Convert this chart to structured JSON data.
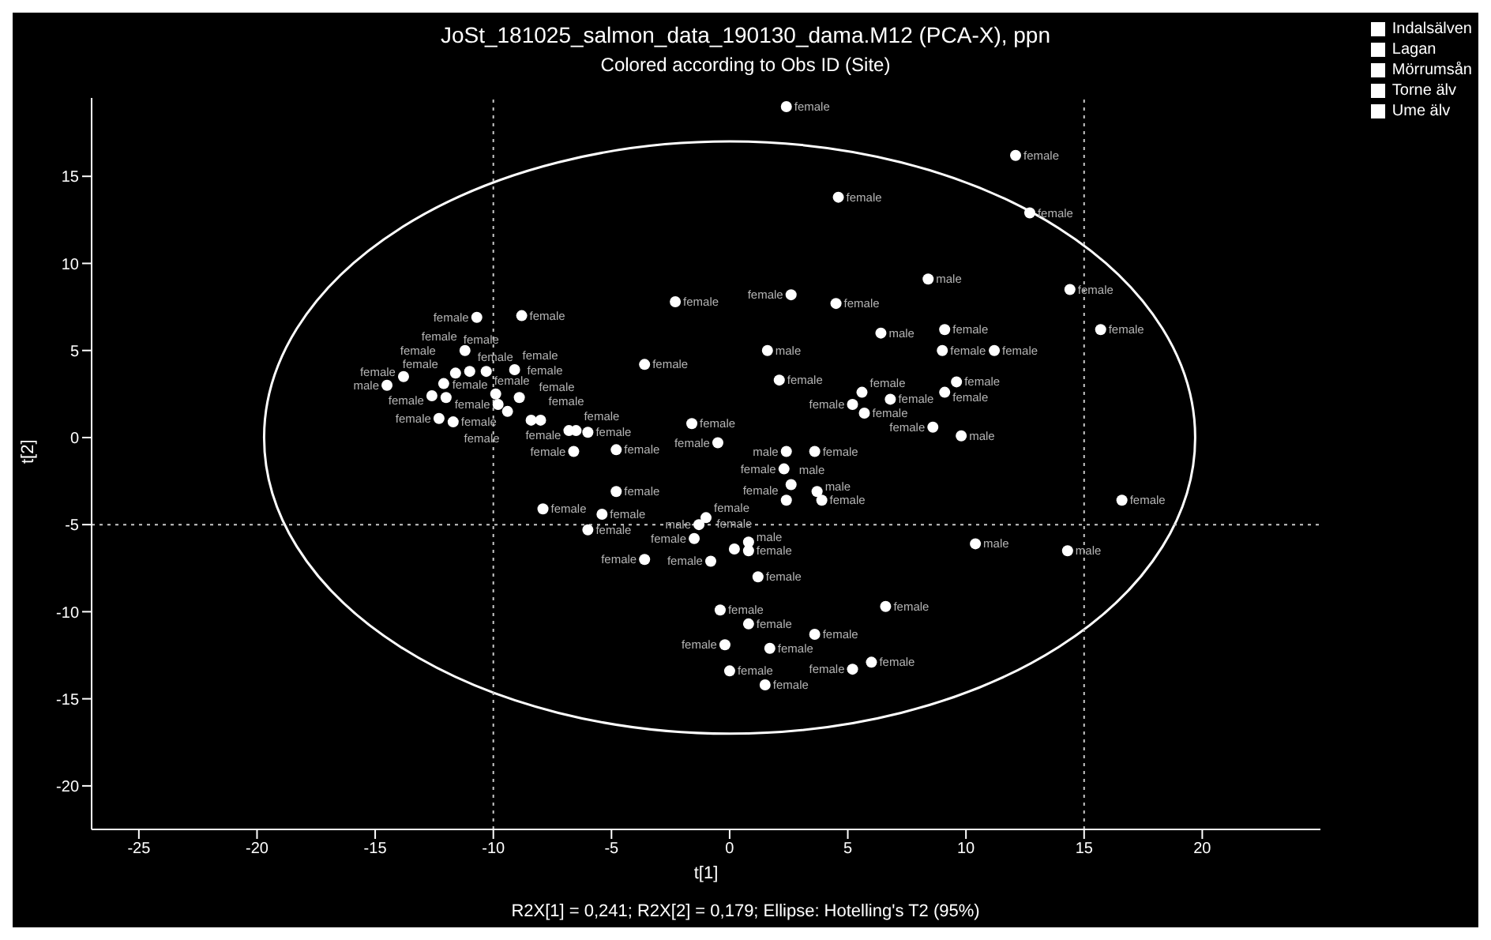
{
  "chart_data": {
    "type": "scatter",
    "title": "JoSt_181025_salmon_data_190130_dama.M12 (PCA-X), ppn",
    "subtitle": "Colored according to Obs ID (Site)",
    "xlabel": "t[1]",
    "ylabel": "t[2]",
    "annotations": [
      "R2X[1] = 0,241; R2X[2] = 0,179; Ellipse: Hotelling's T2 (95%)"
    ],
    "xlim": [
      -27,
      25
    ],
    "ylim": [
      -22.5,
      19.5
    ],
    "xticks": [
      -25,
      -20,
      -15,
      -10,
      -5,
      0,
      5,
      10,
      15,
      20
    ],
    "yticks": [
      -20,
      -15,
      -10,
      -5,
      0,
      5,
      10,
      15
    ],
    "marker": "circle",
    "legend": "top right",
    "ref_lines": [
      {
        "axis": "x",
        "value": 15,
        "color": "#c8c8c8",
        "line_style": "dotted"
      },
      {
        "axis": "x",
        "value": -10,
        "color": "#c8c8c8",
        "line_style": "dotted"
      },
      {
        "axis": "y",
        "value": -5,
        "color": "#c8c8c8",
        "line_style": "dotted"
      }
    ],
    "series": [
      {
        "type": "scatter",
        "color": "#ffffff",
        "x": [
          1.5,
          5.2,
          6.0,
          0.0,
          1.7,
          -0.2,
          3.6,
          0.8,
          6.6,
          -0.4,
          1.2,
          -0.8,
          -3.6,
          14.3,
          10.4,
          0.8,
          0.2,
          0.8,
          -1.5,
          -1.3,
          -1.0,
          -6.0,
          -5.4,
          -7.9,
          16.6,
          3.9,
          2.4,
          3.7,
          -4.8,
          2.6,
          2.3,
          3.6,
          2.4,
          -4.8,
          -6.6,
          -0.5,
          9.8,
          8.6,
          -1.6,
          -6.0,
          -6.5,
          -6.8,
          -8.0,
          -8.4,
          -11.7,
          -12.3,
          -9.4,
          -9.8,
          -8.9,
          -9.9,
          -12.0,
          -12.6,
          -14.5,
          -12.1,
          -13.8,
          -11.6,
          -11.0,
          -10.3,
          -9.1,
          -11.2,
          -3.6,
          2.1,
          5.7,
          5.2,
          6.8,
          5.6,
          9.1,
          9.6,
          11.2,
          9.0,
          1.6,
          15.7,
          9.1,
          6.4,
          4.5,
          2.6,
          -2.3,
          -10.7,
          -8.8,
          14.4,
          8.4,
          12.7,
          4.6,
          12.1,
          2.4
        ],
        "values": [
          -14.2,
          -13.3,
          -12.9,
          -13.4,
          -12.1,
          -11.9,
          -11.3,
          -10.7,
          -9.7,
          -9.9,
          -8.0,
          -7.1,
          -7.0,
          -6.5,
          -6.1,
          -6.5,
          -6.4,
          -6.0,
          -5.8,
          -5.0,
          -4.6,
          -5.3,
          -4.4,
          -4.1,
          -3.6,
          -3.6,
          -3.6,
          -3.1,
          -3.1,
          -2.7,
          -1.8,
          -0.8,
          -0.8,
          -0.7,
          -0.8,
          -0.3,
          0.1,
          0.6,
          0.8,
          0.3,
          0.4,
          0.4,
          1.0,
          1.0,
          0.9,
          1.1,
          1.5,
          1.9,
          2.3,
          2.5,
          2.3,
          2.4,
          3.0,
          3.1,
          3.5,
          3.7,
          3.8,
          3.8,
          3.9,
          5.0,
          4.2,
          3.3,
          1.4,
          1.9,
          2.2,
          2.6,
          2.6,
          3.2,
          5.0,
          5.0,
          5.0,
          6.2,
          6.2,
          6.0,
          7.7,
          8.2,
          7.8,
          6.9,
          7.0,
          8.5,
          9.1,
          12.9,
          13.8,
          16.2,
          19.0
        ],
        "value_labels": [
          "female",
          "female",
          "female",
          "female",
          "female",
          "female",
          "female",
          "female",
          "female",
          "female",
          "female",
          "female",
          "female",
          "male",
          "male",
          "female",
          "female",
          "male",
          "female",
          "male",
          "female",
          "female",
          "female",
          "female",
          "female",
          "female",
          "female",
          "male",
          "female",
          "male",
          "female",
          "female",
          "male",
          "female",
          "female",
          "female",
          "male",
          "female",
          "female",
          "female",
          "female",
          "female",
          "female",
          "female",
          "female",
          "female",
          "female",
          "female",
          "female",
          "female",
          "female",
          "female",
          "male",
          "female",
          "female",
          "female",
          "female",
          "female",
          "female",
          "female",
          "female",
          "female",
          "female",
          "female",
          "female",
          "female",
          "female",
          "female",
          "female",
          "female",
          "male",
          "female",
          "female",
          "male",
          "female",
          "female",
          "female",
          "female",
          "female",
          "female",
          "male",
          "female",
          "female",
          "female",
          "female"
        ]
      },
      {
        "type": "scatter",
        "name": "Indalsälven",
        "color": "#ffffff"
      },
      {
        "type": "scatter",
        "name": "Lagan",
        "color": "#ffffff"
      },
      {
        "type": "scatter",
        "name": "Mörrumsån",
        "color": "#ffffff"
      },
      {
        "type": "scatter",
        "name": "Torne älv",
        "color": "#ffffff"
      },
      {
        "type": "scatter",
        "name": "Ume älv",
        "color": "#ffffff"
      }
    ]
  }
}
